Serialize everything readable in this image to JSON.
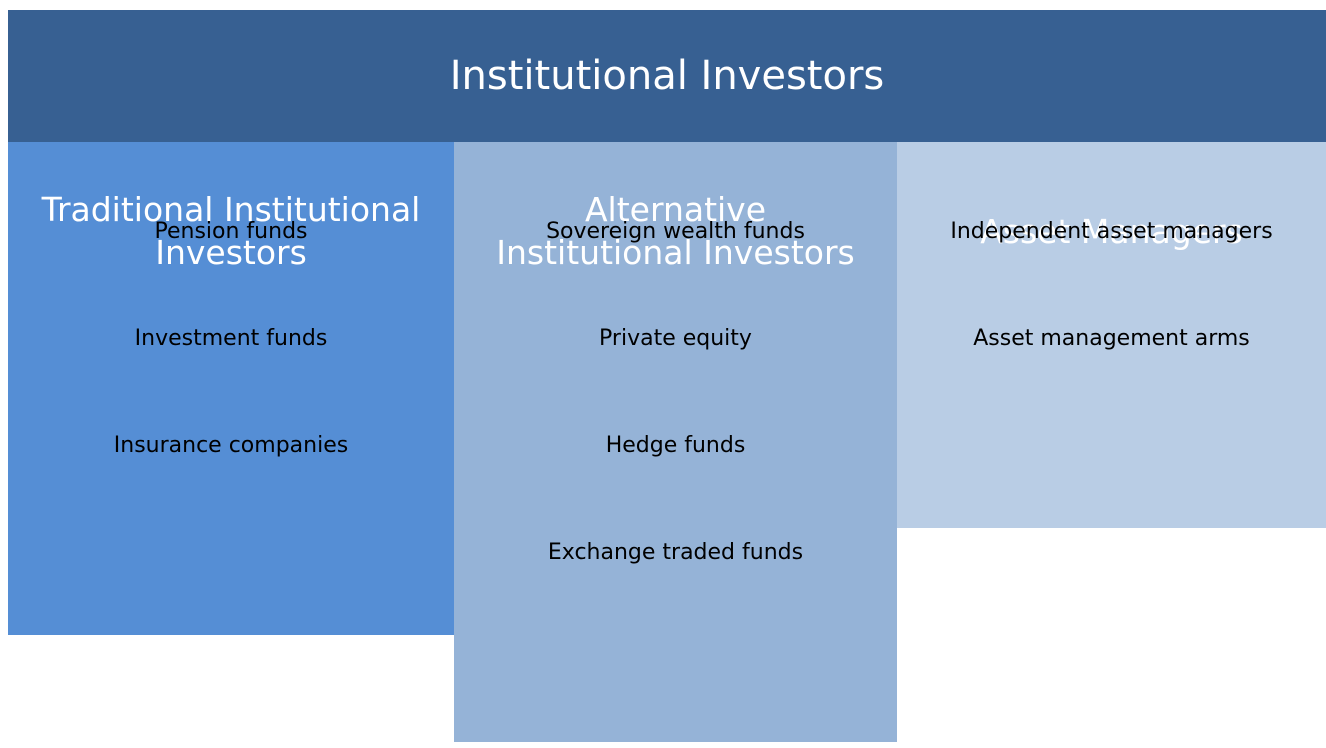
{
  "title": "Institutional Investors",
  "columns": [
    {
      "heading": "Traditional Institutional Investors",
      "items": [
        "Pension funds",
        "Investment funds",
        "Insurance companies"
      ]
    },
    {
      "heading": "Alternative Institutional Investors",
      "items": [
        "Sovereign wealth funds",
        "Private equity",
        "Hedge funds",
        "Exchange traded funds"
      ]
    },
    {
      "heading": "Asset Managers",
      "items": [
        "Independent asset managers",
        "Asset management arms"
      ]
    }
  ]
}
